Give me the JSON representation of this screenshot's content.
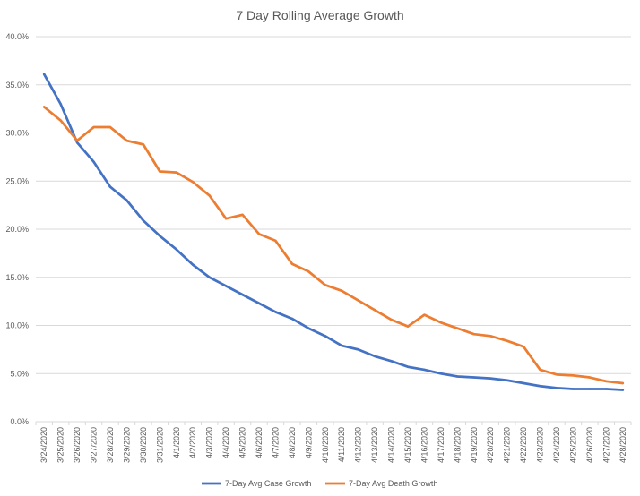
{
  "chart_data": {
    "type": "line",
    "title": "7 Day Rolling Average Growth",
    "xlabel": "",
    "ylabel": "",
    "ylim": [
      0,
      40
    ],
    "y_ticks": [
      "0.0%",
      "5.0%",
      "10.0%",
      "15.0%",
      "20.0%",
      "25.0%",
      "30.0%",
      "35.0%",
      "40.0%"
    ],
    "y_tick_values": [
      0,
      5,
      10,
      15,
      20,
      25,
      30,
      35,
      40
    ],
    "grid": "horizontal",
    "legend_position": "bottom",
    "categories": [
      "3/24/2020",
      "3/25/2020",
      "3/26/2020",
      "3/27/2020",
      "3/28/2020",
      "3/29/2020",
      "3/30/2020",
      "3/31/2020",
      "4/1/2020",
      "4/2/2020",
      "4/3/2020",
      "4/4/2020",
      "4/5/2020",
      "4/6/2020",
      "4/7/2020",
      "4/8/2020",
      "4/9/2020",
      "4/10/2020",
      "4/11/2020",
      "4/12/2020",
      "4/13/2020",
      "4/14/2020",
      "4/15/2020",
      "4/16/2020",
      "4/17/2020",
      "4/18/2020",
      "4/19/2020",
      "4/20/2020",
      "4/21/2020",
      "4/22/2020",
      "4/23/2020",
      "4/24/2020",
      "4/25/2020",
      "4/26/2020",
      "4/27/2020",
      "4/28/2020"
    ],
    "series": [
      {
        "name": "7-Day Avg Case Growth",
        "color": "#4472c4",
        "values": [
          36.1,
          33.0,
          29.0,
          27.0,
          24.4,
          23.0,
          20.9,
          19.3,
          17.9,
          16.3,
          15.0,
          14.1,
          13.2,
          12.3,
          11.4,
          10.7,
          9.7,
          8.9,
          7.9,
          7.5,
          6.8,
          6.3,
          5.7,
          5.4,
          5.0,
          4.7,
          4.6,
          4.5,
          4.3,
          4.0,
          3.7,
          3.5,
          3.4,
          3.4,
          3.4,
          3.3
        ]
      },
      {
        "name": "7-Day Avg Death Growth",
        "color": "#ed7d31",
        "values": [
          32.7,
          31.3,
          29.2,
          30.6,
          30.6,
          29.2,
          28.8,
          26.0,
          25.9,
          24.9,
          23.5,
          21.1,
          21.5,
          19.5,
          18.8,
          16.4,
          15.6,
          14.2,
          13.6,
          12.6,
          11.6,
          10.6,
          9.9,
          11.1,
          10.3,
          9.7,
          9.1,
          8.9,
          8.4,
          7.8,
          5.4,
          4.9,
          4.8,
          4.6,
          4.2,
          4.0
        ]
      }
    ]
  }
}
